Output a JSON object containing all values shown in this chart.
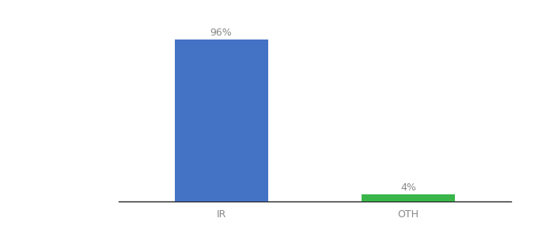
{
  "categories": [
    "IR",
    "OTH"
  ],
  "values": [
    96,
    4
  ],
  "bar_colors": [
    "#4472c4",
    "#3ab54a"
  ],
  "label_texts": [
    "96%",
    "4%"
  ],
  "background_color": "#ffffff",
  "ylim": [
    0,
    108
  ],
  "bar_width": 0.5,
  "label_fontsize": 9,
  "tick_fontsize": 9,
  "label_color": "#888888",
  "tick_color": "#888888",
  "spine_color": "#222222"
}
